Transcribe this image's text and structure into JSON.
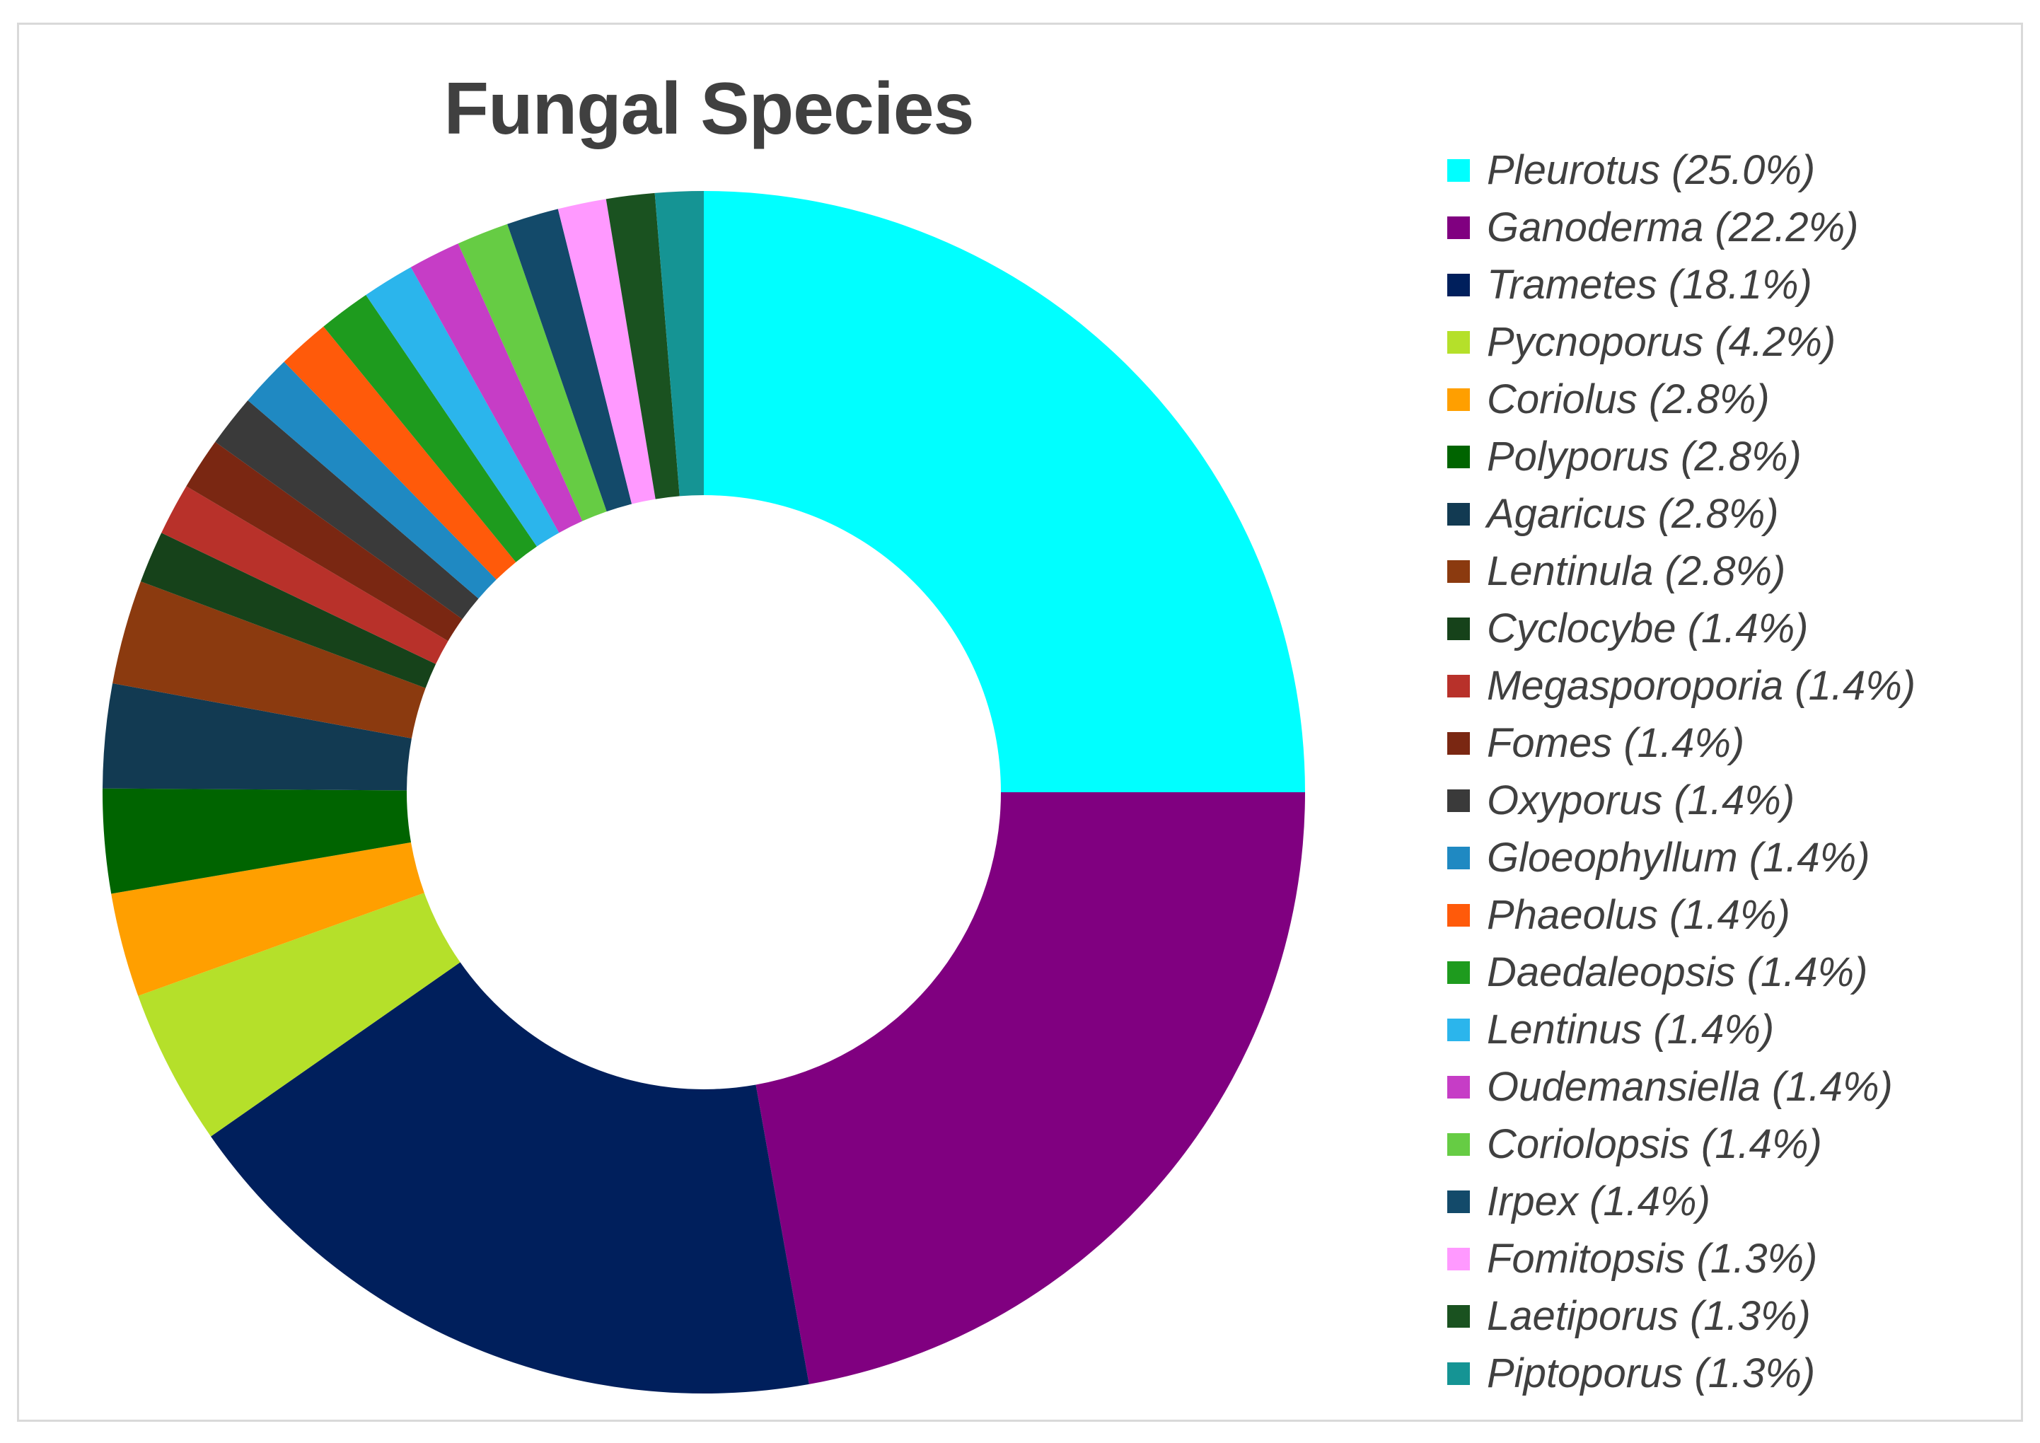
{
  "chart_data": {
    "type": "pie",
    "donut": true,
    "title": "Fungal Species",
    "legend_position": "right",
    "slices": [
      {
        "label": "Pleurotus (25.0%)",
        "value": 25.0,
        "color": "#00FFFF"
      },
      {
        "label": "Ganoderma (22.2%)",
        "value": 22.2,
        "color": "#800080"
      },
      {
        "label": "Trametes (18.1%)",
        "value": 18.1,
        "color": "#001F5C"
      },
      {
        "label": "Pycnoporus (4.2%)",
        "value": 4.2,
        "color": "#B5E02A"
      },
      {
        "label": "Coriolus (2.8%)",
        "value": 2.8,
        "color": "#FF9F00"
      },
      {
        "label": "Polyporus (2.8%)",
        "value": 2.8,
        "color": "#006400"
      },
      {
        "label": "Agaricus (2.8%)",
        "value": 2.8,
        "color": "#123A52"
      },
      {
        "label": "Lentinula (2.8%)",
        "value": 2.8,
        "color": "#8B3A0F"
      },
      {
        "label": "Cyclocybe (1.4%)",
        "value": 1.4,
        "color": "#16421A"
      },
      {
        "label": "Megasporoporia (1.4%)",
        "value": 1.4,
        "color": "#B8312A"
      },
      {
        "label": "Fomes (1.4%)",
        "value": 1.4,
        "color": "#7A2712"
      },
      {
        "label": "Oxyporus (1.4%)",
        "value": 1.4,
        "color": "#3A3A3A"
      },
      {
        "label": "Gloeophyllum (1.4%)",
        "value": 1.4,
        "color": "#1F89C2"
      },
      {
        "label": "Phaeolus (1.4%)",
        "value": 1.4,
        "color": "#FF5A0A"
      },
      {
        "label": "Daedaleopsis (1.4%)",
        "value": 1.4,
        "color": "#1E9B1E"
      },
      {
        "label": "Lentinus (1.4%)",
        "value": 1.4,
        "color": "#2BB5EC"
      },
      {
        "label": "Oudemansiella (1.4%)",
        "value": 1.4,
        "color": "#C63DC6"
      },
      {
        "label": "Coriolopsis (1.4%)",
        "value": 1.4,
        "color": "#66CC44"
      },
      {
        "label": "Irpex (1.4%)",
        "value": 1.4,
        "color": "#134A6A"
      },
      {
        "label": "Fomitopsis (1.3%)",
        "value": 1.3,
        "color": "#FF99FF"
      },
      {
        "label": "Laetiporus (1.3%)",
        "value": 1.3,
        "color": "#1A5220"
      },
      {
        "label": "Piptoporus (1.3%)",
        "value": 1.3,
        "color": "#159494"
      }
    ]
  }
}
